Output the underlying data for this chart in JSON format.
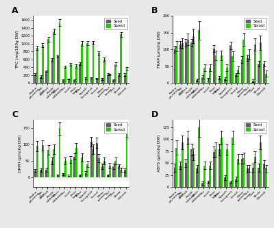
{
  "panels": {
    "A": {
      "title": "A",
      "ylabel": "TPC (mg/100g DW)",
      "ylim": [
        0,
        1700
      ],
      "yticks": [
        0,
        200,
        400,
        600,
        800,
        1000,
        1200,
        1400,
        1600
      ],
      "categories": [
        "Padina\npavonica",
        "Pak\nChoi",
        "Broccoli",
        "Purple\ncabbage",
        "White\ncabbage",
        "Pea",
        "Lentil",
        "Pinto\nbean",
        "Anise",
        "Squash",
        "Fenugreek",
        "Fennel",
        "Water\nspinach",
        "Sun\nflower",
        "Okra",
        "Vanda",
        "Damask"
      ],
      "seed": [
        220,
        165,
        300,
        590,
        680,
        80,
        100,
        80,
        490,
        120,
        125,
        110,
        100,
        220,
        80,
        210,
        210
      ],
      "sprout": [
        890,
        960,
        1110,
        1300,
        1530,
        410,
        480,
        430,
        1000,
        1010,
        1020,
        760,
        600,
        210,
        480,
        1230,
        375
      ],
      "err_seed": [
        25,
        35,
        25,
        40,
        35,
        15,
        15,
        15,
        40,
        25,
        25,
        20,
        20,
        25,
        15,
        35,
        30
      ],
      "err_sprout": [
        50,
        50,
        60,
        70,
        80,
        35,
        35,
        40,
        60,
        50,
        50,
        50,
        50,
        20,
        40,
        60,
        35
      ]
    },
    "B": {
      "title": "B",
      "ylabel": "FRAP (μmol/g DW)",
      "ylim": [
        0,
        200
      ],
      "yticks": [
        0,
        50,
        100,
        150,
        200
      ],
      "categories": [
        "Padina\npavonica",
        "Pak\nChoi",
        "Broccoli",
        "Purple\ncabbage",
        "White\ncabbage",
        "Pea",
        "Lentil",
        "Pinto\nbean",
        "Anise",
        "Squash",
        "Fenugreek",
        "Fennel",
        "Water\nspinach",
        "Sun\nflower",
        "Okra",
        "Vanda",
        "Damask"
      ],
      "seed": [
        100,
        115,
        120,
        120,
        8,
        17,
        10,
        102,
        15,
        12,
        112,
        25,
        70,
        75,
        7,
        57,
        58
      ],
      "sprout": [
        110,
        118,
        130,
        140,
        157,
        45,
        45,
        82,
        82,
        45,
        80,
        40,
        130,
        85,
        115,
        120,
        28
      ],
      "err_seed": [
        10,
        10,
        12,
        12,
        4,
        5,
        4,
        10,
        5,
        4,
        12,
        5,
        10,
        10,
        4,
        8,
        8
      ],
      "err_sprout": [
        15,
        15,
        18,
        22,
        28,
        10,
        10,
        15,
        15,
        10,
        15,
        10,
        20,
        15,
        18,
        22,
        10
      ]
    },
    "C": {
      "title": "C",
      "ylabel": "DPPH (μmol/g DW)",
      "ylim": [
        -30,
        175
      ],
      "yticks": [
        0,
        50,
        100,
        150
      ],
      "categories": [
        "Padina\npavonica",
        "Pak\nChoi",
        "Broccoli",
        "Purple\ncabbage",
        "White\ncabbage",
        "Pea",
        "Lentil",
        "Pinto\nbean",
        "Anise",
        "Squash",
        "Fenugreek",
        "Fennel",
        "Water\nspinach",
        "Sun\nflower",
        "Okra",
        "Vanda",
        "Damask"
      ],
      "seed": [
        20,
        22,
        22,
        50,
        5,
        9,
        4,
        63,
        5,
        13,
        108,
        105,
        33,
        5,
        33,
        34,
        22
      ],
      "sprout": [
        95,
        97,
        83,
        85,
        150,
        50,
        54,
        90,
        60,
        40,
        85,
        58,
        50,
        35,
        50,
        22,
        140
      ],
      "err_seed": [
        5,
        5,
        5,
        10,
        3,
        3,
        3,
        10,
        3,
        5,
        15,
        15,
        8,
        3,
        8,
        6,
        5
      ],
      "err_sprout": [
        15,
        15,
        15,
        15,
        20,
        10,
        10,
        15,
        12,
        10,
        15,
        12,
        10,
        8,
        10,
        6,
        20
      ]
    },
    "D": {
      "title": "D",
      "ylabel": "ABTS (μmol/g DW)",
      "ylim": [
        0,
        140
      ],
      "yticks": [
        0,
        25,
        50,
        75,
        100,
        125
      ],
      "categories": [
        "Padina\npavonica",
        "Pak\nChoi",
        "Broccoli",
        "Purple\ncabbage",
        "White\ncabbage",
        "Pea",
        "Lentil",
        "Pinto\nbean",
        "Anise",
        "Squash",
        "Fenugreek",
        "Fennel",
        "Water\nspinach",
        "Sun\nflower",
        "Okra",
        "Vanda",
        "Damask"
      ],
      "seed": [
        40,
        45,
        50,
        78,
        38,
        8,
        10,
        73,
        78,
        20,
        10,
        16,
        58,
        38,
        40,
        40,
        48
      ],
      "sprout": [
        82,
        93,
        103,
        68,
        125,
        45,
        45,
        78,
        103,
        78,
        103,
        58,
        60,
        38,
        63,
        93,
        38
      ],
      "err_seed": [
        8,
        8,
        8,
        12,
        8,
        3,
        3,
        12,
        12,
        5,
        3,
        5,
        10,
        8,
        8,
        8,
        8
      ],
      "err_sprout": [
        15,
        15,
        15,
        12,
        20,
        8,
        8,
        15,
        15,
        12,
        15,
        10,
        12,
        8,
        12,
        15,
        8
      ]
    }
  },
  "seed_color": "#606060",
  "sprout_color": "#22cc00",
  "bar_width": 0.35,
  "bg_color": "#ffffff",
  "fig_bg_color": "#e8e8e8"
}
